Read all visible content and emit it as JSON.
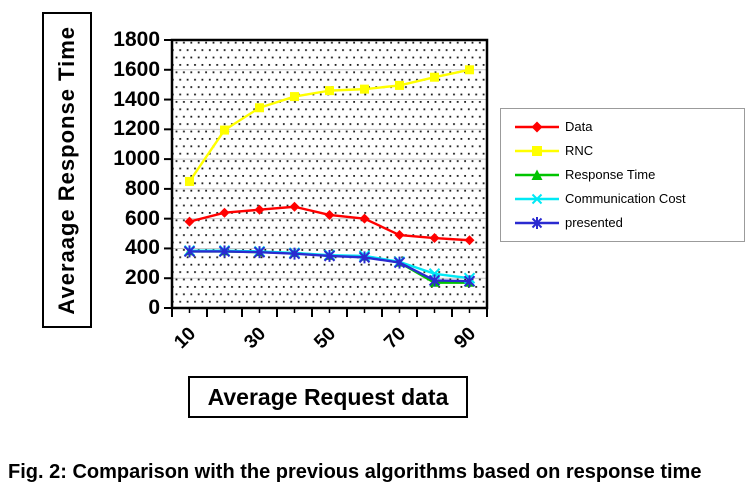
{
  "figure": {
    "y_axis_label": "Averaage Response Time",
    "x_axis_label": "Average Request data",
    "caption": "Fig. 2: Comparison with the previous algorithms based on response time"
  },
  "chart_data": {
    "type": "line",
    "x": [
      10,
      20,
      30,
      40,
      50,
      60,
      70,
      80,
      90
    ],
    "x_tick_labels_shown": [
      "10",
      "30",
      "50",
      "70",
      "90"
    ],
    "y_ticks": [
      0,
      200,
      400,
      600,
      800,
      1000,
      1200,
      1400,
      1600,
      1800
    ],
    "ylim": [
      0,
      1800
    ],
    "xlabel": "Average Request data",
    "ylabel": "Averaage Response Time",
    "grid": "horizontal",
    "plot_background": "white-with-black-dot-pattern",
    "legend_position": "right",
    "series": [
      {
        "name": "Data",
        "color": "#FF0000",
        "marker": "diamond",
        "values": [
          580,
          640,
          660,
          680,
          625,
          600,
          490,
          470,
          455
        ]
      },
      {
        "name": "RNC",
        "color": "#FFFF00",
        "marker": "square",
        "values": [
          850,
          1195,
          1345,
          1420,
          1460,
          1470,
          1495,
          1550,
          1600
        ]
      },
      {
        "name": "Response Time",
        "color": "#00C400",
        "marker": "triangle",
        "values": [
          380,
          380,
          375,
          370,
          350,
          345,
          305,
          170,
          170
        ]
      },
      {
        "name": "Communication Cost",
        "color": "#00E9F5",
        "marker": "x",
        "values": [
          385,
          385,
          380,
          370,
          355,
          350,
          310,
          230,
          200
        ]
      },
      {
        "name": "presented",
        "color": "#2A2AD0",
        "marker": "star",
        "values": [
          380,
          380,
          375,
          365,
          350,
          340,
          305,
          185,
          180
        ]
      }
    ]
  }
}
